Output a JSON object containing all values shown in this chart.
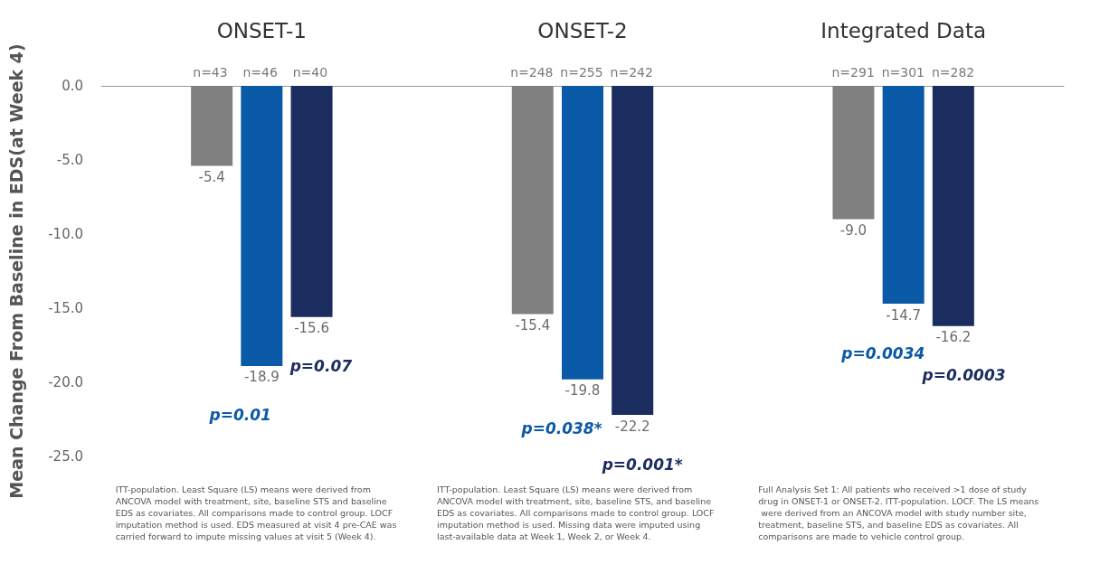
{
  "chart_data": {
    "type": "bar",
    "ylabel": "Mean Change From Baseline in EDS(at Week 4)",
    "categories": [
      "ONSET-1",
      "ONSET-2",
      "Integrated Data"
    ],
    "series": [
      {
        "color": "#808080",
        "values": [
          -5.4,
          -15.4,
          -9.0
        ],
        "value_labels": [
          "-5.4",
          "-15.4",
          "-9.0"
        ]
      },
      {
        "color": "#0b5aa7",
        "values": [
          -18.9,
          -19.8,
          -14.7
        ],
        "value_labels": [
          "-18.9",
          "-19.8",
          "-14.7"
        ]
      },
      {
        "color": "#1b2d5e",
        "values": [
          -15.6,
          -22.2,
          -16.2
        ],
        "value_labels": [
          "-15.6",
          "-22.2",
          "-16.2"
        ]
      }
    ],
    "ylim": [
      -25,
      0
    ],
    "yticks": [
      {
        "value": 0,
        "label": "0.0"
      },
      {
        "value": -5,
        "label": "-5.0"
      },
      {
        "value": -10,
        "label": "-10.0"
      },
      {
        "value": -15,
        "label": "-15.0"
      },
      {
        "value": -20,
        "label": "-20.0"
      },
      {
        "value": -25,
        "label": "-25.0"
      }
    ],
    "grid": false,
    "annotations": [
      "n=43",
      "n=46",
      "n=40",
      "n=248",
      "n=255",
      "n=242",
      "n=291",
      "n=301",
      "n=282",
      "p=0.01",
      "p=0.07",
      "p=0.038*",
      "p=0.001*",
      "p=0.0034",
      "p=0.0003",
      "ITT-population. Least Square (LS) means were derived from ANCOVA model with treatment, site, baseline STS and baseline EDS as covariates. All comparisons made to control group. LOCF imputation method is used. EDS measured at visit 4 pre-CAE was carried forward to impute missing values at visit 5 (Week 4).",
      "ITT-population. Least Square (LS) means were derived from ANCOVA model with treatment, site, baseline STS, and baseline EDS as covariates. All comparisons made to control group. LOCF imputation method is used. Missing data were imputed using last-available data at Week 1, Week 2, or Week 4.",
      "Full Analysis Set 1: All patients who received >1 dose of study drug in ONSET-1 or ONSET-2. ITT-population. LOCF. The LS means were derived from an ANCOVA model with study number site, treatment, baseline STS, and baseline EDS as covariates. All comparisons are made to vehicle control group."
    ]
  }
}
